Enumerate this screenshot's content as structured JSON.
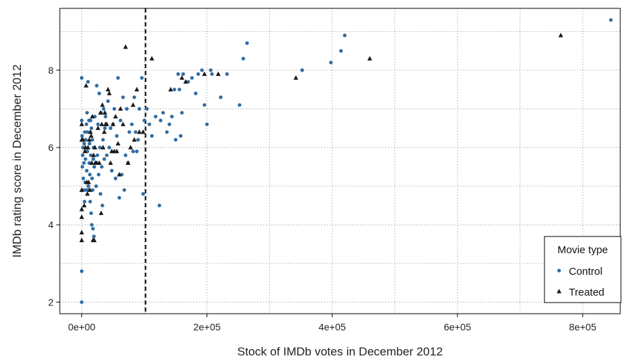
{
  "chart_data": {
    "type": "scatter",
    "xlabel": "Stock of IMDb votes in December 2012",
    "ylabel": "IMDb rating score in December 2012",
    "xlim": [
      -35000,
      860000
    ],
    "ylim": [
      1.7,
      9.6
    ],
    "x_ticks": [
      0,
      200000,
      400000,
      600000,
      800000
    ],
    "x_tick_labels": [
      "0e+00",
      "2e+05",
      "4e+05",
      "6e+05",
      "8e+05"
    ],
    "y_ticks": [
      2,
      4,
      6,
      8
    ],
    "y_tick_labels": [
      "2",
      "4",
      "6",
      "8"
    ],
    "x_minor_grid": [
      100000,
      300000,
      500000,
      700000
    ],
    "y_minor_grid": [
      3,
      5,
      7,
      9
    ],
    "grid": true,
    "cutoff_line": {
      "x": 102000,
      "style": "dashed",
      "color": "#000000"
    },
    "legend": {
      "title": "Movie type",
      "position": "bottom-right"
    },
    "series": [
      {
        "name": "Control",
        "marker": "circle",
        "color": "#2e6da4",
        "points": [
          [
            0,
            2.0
          ],
          [
            0,
            2.8
          ],
          [
            0,
            7.8
          ],
          [
            0,
            6.7
          ],
          [
            500,
            6.3
          ],
          [
            1000,
            5.5
          ],
          [
            1500,
            5.8
          ],
          [
            2000,
            6.0
          ],
          [
            2500,
            5.2
          ],
          [
            3000,
            4.9
          ],
          [
            3500,
            5.6
          ],
          [
            4000,
            6.1
          ],
          [
            4500,
            4.6
          ],
          [
            5000,
            6.4
          ],
          [
            5500,
            5.1
          ],
          [
            6000,
            5.7
          ],
          [
            6500,
            6.2
          ],
          [
            7000,
            4.9
          ],
          [
            7500,
            6.6
          ],
          [
            8000,
            5.4
          ],
          [
            8500,
            6.9
          ],
          [
            9000,
            5.9
          ],
          [
            9500,
            6.4
          ],
          [
            10000,
            7.7
          ],
          [
            10500,
            5.0
          ],
          [
            11000,
            4.9
          ],
          [
            11500,
            6.7
          ],
          [
            12000,
            5.6
          ],
          [
            12500,
            6.1
          ],
          [
            13000,
            5.3
          ],
          [
            13500,
            4.6
          ],
          [
            14000,
            6.7
          ],
          [
            14500,
            5.8
          ],
          [
            15000,
            4.3
          ],
          [
            15500,
            6.5
          ],
          [
            16000,
            4.0
          ],
          [
            16500,
            5.2
          ],
          [
            17000,
            6.2
          ],
          [
            17500,
            4.9
          ],
          [
            18000,
            3.9
          ],
          [
            18500,
            5.7
          ],
          [
            19000,
            6.0
          ],
          [
            19500,
            3.7
          ],
          [
            20000,
            5.5
          ],
          [
            21000,
            6.8
          ],
          [
            22000,
            5.6
          ],
          [
            23000,
            5.0
          ],
          [
            24000,
            7.6
          ],
          [
            25000,
            5.8
          ],
          [
            26000,
            6.6
          ],
          [
            27000,
            5.3
          ],
          [
            28000,
            7.4
          ],
          [
            29000,
            6.0
          ],
          [
            30000,
            4.8
          ],
          [
            31000,
            6.9
          ],
          [
            32000,
            5.5
          ],
          [
            33000,
            4.5
          ],
          [
            34000,
            6.2
          ],
          [
            35000,
            7.0
          ],
          [
            36000,
            5.7
          ],
          [
            37000,
            6.5
          ],
          [
            38000,
            6.8
          ],
          [
            40000,
            5.8
          ],
          [
            42000,
            7.2
          ],
          [
            44000,
            6.0
          ],
          [
            46000,
            6.5
          ],
          [
            48000,
            5.4
          ],
          [
            50000,
            6.6
          ],
          [
            52000,
            7.0
          ],
          [
            54000,
            5.2
          ],
          [
            56000,
            6.3
          ],
          [
            58000,
            7.8
          ],
          [
            60000,
            4.7
          ],
          [
            62000,
            6.7
          ],
          [
            64000,
            5.3
          ],
          [
            66000,
            7.3
          ],
          [
            68000,
            4.9
          ],
          [
            70000,
            5.8
          ],
          [
            72000,
            7.0
          ],
          [
            74000,
            5.6
          ],
          [
            76000,
            6.4
          ],
          [
            80000,
            6.6
          ],
          [
            82000,
            5.9
          ],
          [
            84000,
            7.3
          ],
          [
            86000,
            6.4
          ],
          [
            88000,
            5.9
          ],
          [
            90000,
            6.2
          ],
          [
            92000,
            7.0
          ],
          [
            96000,
            7.8
          ],
          [
            98000,
            4.8
          ],
          [
            100000,
            6.7
          ],
          [
            104000,
            7.0
          ],
          [
            108000,
            6.6
          ],
          [
            112000,
            6.3
          ],
          [
            118000,
            6.8
          ],
          [
            124000,
            4.5
          ],
          [
            126000,
            6.7
          ],
          [
            130000,
            6.9
          ],
          [
            136000,
            6.4
          ],
          [
            140000,
            6.6
          ],
          [
            144000,
            6.8
          ],
          [
            148000,
            7.5
          ],
          [
            150000,
            6.2
          ],
          [
            154000,
            7.9
          ],
          [
            156000,
            7.5
          ],
          [
            158000,
            6.3
          ],
          [
            160000,
            6.9
          ],
          [
            162000,
            7.9
          ],
          [
            170000,
            7.7
          ],
          [
            176000,
            7.8
          ],
          [
            182000,
            7.4
          ],
          [
            186000,
            7.9
          ],
          [
            192000,
            8.0
          ],
          [
            196000,
            7.1
          ],
          [
            200000,
            6.6
          ],
          [
            206000,
            8.0
          ],
          [
            208000,
            7.9
          ],
          [
            222000,
            7.3
          ],
          [
            232000,
            7.9
          ],
          [
            252000,
            7.1
          ],
          [
            258000,
            8.3
          ],
          [
            264000,
            8.7
          ],
          [
            352000,
            8.0
          ],
          [
            398000,
            8.2
          ],
          [
            414000,
            8.5
          ],
          [
            420000,
            8.9
          ],
          [
            845000,
            9.3
          ]
        ]
      },
      {
        "name": "Treated",
        "marker": "triangle",
        "color": "#1a1a1a",
        "points": [
          [
            0,
            3.6
          ],
          [
            0,
            3.8
          ],
          [
            0,
            4.2
          ],
          [
            0,
            4.4
          ],
          [
            0,
            4.9
          ],
          [
            0,
            6.6
          ],
          [
            0,
            6.2
          ],
          [
            2000,
            6.2
          ],
          [
            4000,
            4.5
          ],
          [
            5000,
            5.9
          ],
          [
            6000,
            6.0
          ],
          [
            7000,
            7.6
          ],
          [
            8000,
            5.1
          ],
          [
            9000,
            4.8
          ],
          [
            10000,
            6.0
          ],
          [
            11000,
            5.1
          ],
          [
            12000,
            6.2
          ],
          [
            13000,
            4.9
          ],
          [
            14000,
            6.4
          ],
          [
            15000,
            6.3
          ],
          [
            16000,
            5.6
          ],
          [
            17000,
            6.8
          ],
          [
            18000,
            3.6
          ],
          [
            19000,
            5.8
          ],
          [
            20000,
            3.6
          ],
          [
            21000,
            6.0
          ],
          [
            22000,
            5.6
          ],
          [
            24000,
            5.6
          ],
          [
            26000,
            6.5
          ],
          [
            28000,
            5.6
          ],
          [
            30000,
            6.9
          ],
          [
            31000,
            4.3
          ],
          [
            32000,
            6.6
          ],
          [
            33000,
            7.1
          ],
          [
            34000,
            6.0
          ],
          [
            36000,
            6.4
          ],
          [
            37000,
            6.9
          ],
          [
            38000,
            6.6
          ],
          [
            40000,
            6.6
          ],
          [
            42000,
            7.5
          ],
          [
            44000,
            7.4
          ],
          [
            46000,
            5.6
          ],
          [
            48000,
            5.9
          ],
          [
            50000,
            6.6
          ],
          [
            52000,
            5.9
          ],
          [
            54000,
            6.8
          ],
          [
            56000,
            5.9
          ],
          [
            58000,
            6.1
          ],
          [
            60000,
            5.3
          ],
          [
            62000,
            7.0
          ],
          [
            66000,
            6.6
          ],
          [
            70000,
            8.6
          ],
          [
            74000,
            5.6
          ],
          [
            78000,
            6.0
          ],
          [
            82000,
            7.1
          ],
          [
            84000,
            6.2
          ],
          [
            88000,
            7.5
          ],
          [
            92000,
            6.4
          ],
          [
            98000,
            6.4
          ],
          [
            112000,
            8.3
          ],
          [
            142000,
            7.5
          ],
          [
            160000,
            7.8
          ],
          [
            166000,
            7.7
          ],
          [
            196000,
            7.9
          ],
          [
            218000,
            7.9
          ],
          [
            342000,
            7.8
          ],
          [
            460000,
            8.3
          ],
          [
            765000,
            8.9
          ]
        ]
      }
    ]
  }
}
